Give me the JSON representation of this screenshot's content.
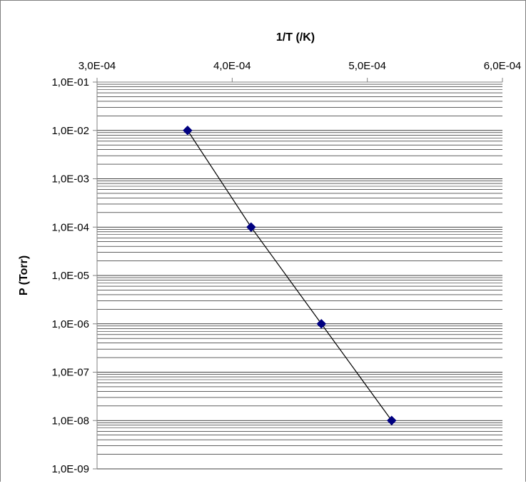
{
  "chart_data": {
    "type": "line",
    "title": "",
    "xlabel": "1/T (/K)",
    "ylabel": "P (Torr)",
    "x_axis_position": "top",
    "x_scale": "linear",
    "y_scale": "log",
    "xlim": [
      0.0003,
      0.0006
    ],
    "ylim": [
      1e-09,
      0.1
    ],
    "x_tick_labels": [
      "3,0E-04",
      "4,0E-04",
      "5,0E-04",
      "6,0E-04"
    ],
    "y_tick_labels": [
      "1,0E-01",
      "1,0E-02",
      "1,0E-03",
      "1,0E-04",
      "1,0E-05",
      "1,0E-06",
      "1,0E-07",
      "1,0E-08",
      "1,0E-09"
    ],
    "grid": "horizontal major and minor",
    "legend": "none",
    "series": [
      {
        "x": [
          0.000367,
          0.000414,
          0.000466,
          0.000518
        ],
        "y": [
          0.01,
          0.0001,
          1e-06,
          1e-08
        ],
        "color": "#000080",
        "line_color": "#000000",
        "marker": "diamond"
      }
    ]
  }
}
